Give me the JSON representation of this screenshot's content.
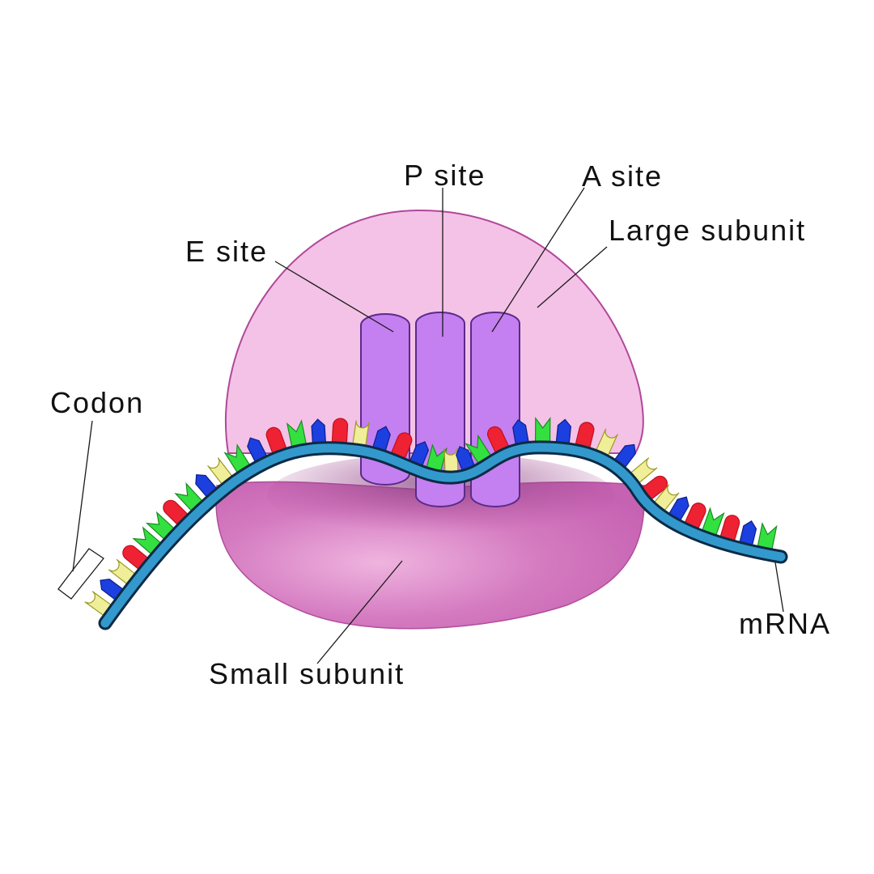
{
  "labels": {
    "e_site": "E site",
    "p_site": "P site",
    "a_site": "A site",
    "large_subunit": "Large subunit",
    "small_subunit": "Small subunit",
    "codon": "Codon",
    "mrna": "mRNA"
  },
  "colors": {
    "large_subunit_fill": "#f4c2e6",
    "large_subunit_stroke": "#b0489a",
    "small_subunit_fill": "#d77cc0",
    "small_subunit_shadow": "#b14d9c",
    "site_fill": "#c47ff0",
    "site_stroke": "#5b2a8a",
    "mrna_fill": "#3399cc",
    "mrna_stroke": "#0b2a45",
    "base_red": "#ee2233",
    "base_yellow": "#f1ee9a",
    "base_blue": "#1c3fe0",
    "base_green": "#33e040"
  }
}
